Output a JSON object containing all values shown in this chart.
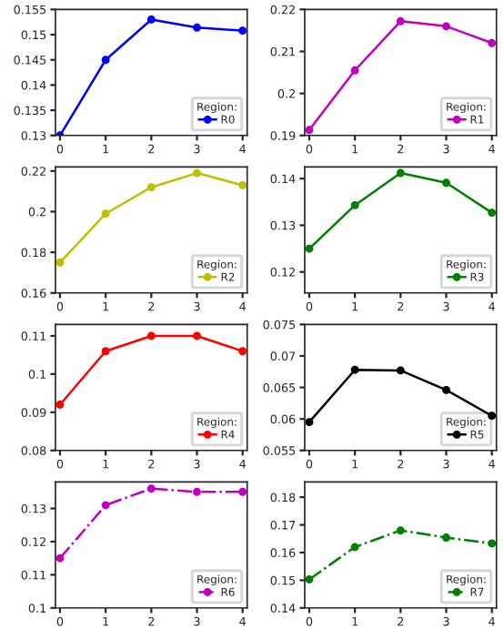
{
  "chart_data": [
    {
      "type": "line",
      "x": [
        0,
        1,
        2,
        3,
        4
      ],
      "xlim": [
        -0.1,
        4.1
      ],
      "xticks": [
        0,
        1,
        2,
        3,
        4
      ],
      "ylim": [
        0.13,
        0.155
      ],
      "yticks": [
        0.13,
        0.135,
        0.14,
        0.145,
        0.15,
        0.155
      ],
      "legend": "bottom right",
      "legend_title": "Region:",
      "marker": "circle",
      "line_style": "solid",
      "series": [
        {
          "name": "R0",
          "color": "#0000ff",
          "values": [
            0.13,
            0.145,
            0.153,
            0.1514,
            0.1508
          ]
        }
      ]
    },
    {
      "type": "line",
      "x": [
        0,
        1,
        2,
        3,
        4
      ],
      "xlim": [
        -0.1,
        4.1
      ],
      "xticks": [
        0,
        1,
        2,
        3,
        4
      ],
      "ylim": [
        0.19,
        0.22
      ],
      "yticks": [
        0.19,
        0.2,
        0.21,
        0.22
      ],
      "legend": "bottom right",
      "legend_title": "Region:",
      "marker": "circle",
      "line_style": "solid",
      "series": [
        {
          "name": "R1",
          "color": "#bf00bf",
          "values": [
            0.1913,
            0.2055,
            0.2172,
            0.216,
            0.212
          ]
        }
      ]
    },
    {
      "type": "line",
      "x": [
        0,
        1,
        2,
        3,
        4
      ],
      "xlim": [
        -0.1,
        4.1
      ],
      "xticks": [
        0,
        1,
        2,
        3,
        4
      ],
      "ylim": [
        0.16,
        0.222
      ],
      "yticks": [
        0.16,
        0.18,
        0.2,
        0.22
      ],
      "legend": "bottom right",
      "legend_title": "Region:",
      "marker": "circle",
      "line_style": "solid",
      "series": [
        {
          "name": "R2",
          "color": "#bfbf00",
          "values": [
            0.175,
            0.199,
            0.212,
            0.219,
            0.213
          ]
        }
      ]
    },
    {
      "type": "line",
      "x": [
        0,
        1,
        2,
        3,
        4
      ],
      "xlim": [
        -0.1,
        4.1
      ],
      "xticks": [
        0,
        1,
        2,
        3,
        4
      ],
      "ylim": [
        0.1155,
        0.1425
      ],
      "yticks": [
        0.12,
        0.13,
        0.14
      ],
      "legend": "bottom right",
      "legend_title": "Region:",
      "marker": "circle",
      "line_style": "solid",
      "series": [
        {
          "name": "R3",
          "color": "#008000",
          "values": [
            0.125,
            0.1343,
            0.1412,
            0.1391,
            0.1327
          ]
        }
      ]
    },
    {
      "type": "line",
      "x": [
        0,
        1,
        2,
        3,
        4
      ],
      "xlim": [
        -0.1,
        4.1
      ],
      "xticks": [
        0,
        1,
        2,
        3,
        4
      ],
      "ylim": [
        0.08,
        0.113
      ],
      "yticks": [
        0.08,
        0.09,
        0.1,
        0.11
      ],
      "legend": "bottom right",
      "legend_title": "Region:",
      "marker": "circle",
      "line_style": "solid",
      "series": [
        {
          "name": "R4",
          "color": "#ff0000",
          "values": [
            0.092,
            0.106,
            0.11,
            0.11,
            0.106
          ]
        }
      ]
    },
    {
      "type": "line",
      "x": [
        0,
        1,
        2,
        3,
        4
      ],
      "xlim": [
        -0.1,
        4.1
      ],
      "xticks": [
        0,
        1,
        2,
        3,
        4
      ],
      "ylim": [
        0.055,
        0.075
      ],
      "yticks": [
        0.055,
        0.06,
        0.065,
        0.07,
        0.075
      ],
      "legend": "bottom right",
      "legend_title": "Region:",
      "marker": "circle",
      "line_style": "solid",
      "series": [
        {
          "name": "R5",
          "color": "#000000",
          "values": [
            0.0595,
            0.0678,
            0.0677,
            0.0646,
            0.0605
          ]
        }
      ]
    },
    {
      "type": "line",
      "x": [
        0,
        1,
        2,
        3,
        4
      ],
      "xlim": [
        -0.1,
        4.1
      ],
      "xticks": [
        0,
        1,
        2,
        3,
        4
      ],
      "ylim": [
        0.1,
        0.138
      ],
      "yticks": [
        0.1,
        0.11,
        0.12,
        0.13
      ],
      "legend": "bottom right",
      "legend_title": "Region:",
      "marker": "circle",
      "line_style": "dashed",
      "series": [
        {
          "name": "R6",
          "color": "#bf00bf",
          "values": [
            0.115,
            0.131,
            0.136,
            0.135,
            0.135
          ]
        }
      ]
    },
    {
      "type": "line",
      "x": [
        0,
        1,
        2,
        3,
        4
      ],
      "xlim": [
        -0.1,
        4.1
      ],
      "xticks": [
        0,
        1,
        2,
        3,
        4
      ],
      "ylim": [
        0.14,
        0.1855
      ],
      "yticks": [
        0.14,
        0.15,
        0.16,
        0.17,
        0.18
      ],
      "legend": "bottom right",
      "legend_title": "Region:",
      "marker": "circle",
      "line_style": "dashed",
      "series": [
        {
          "name": "R7",
          "color": "#008000",
          "values": [
            0.1503,
            0.162,
            0.168,
            0.1654,
            0.1633
          ]
        }
      ]
    }
  ]
}
